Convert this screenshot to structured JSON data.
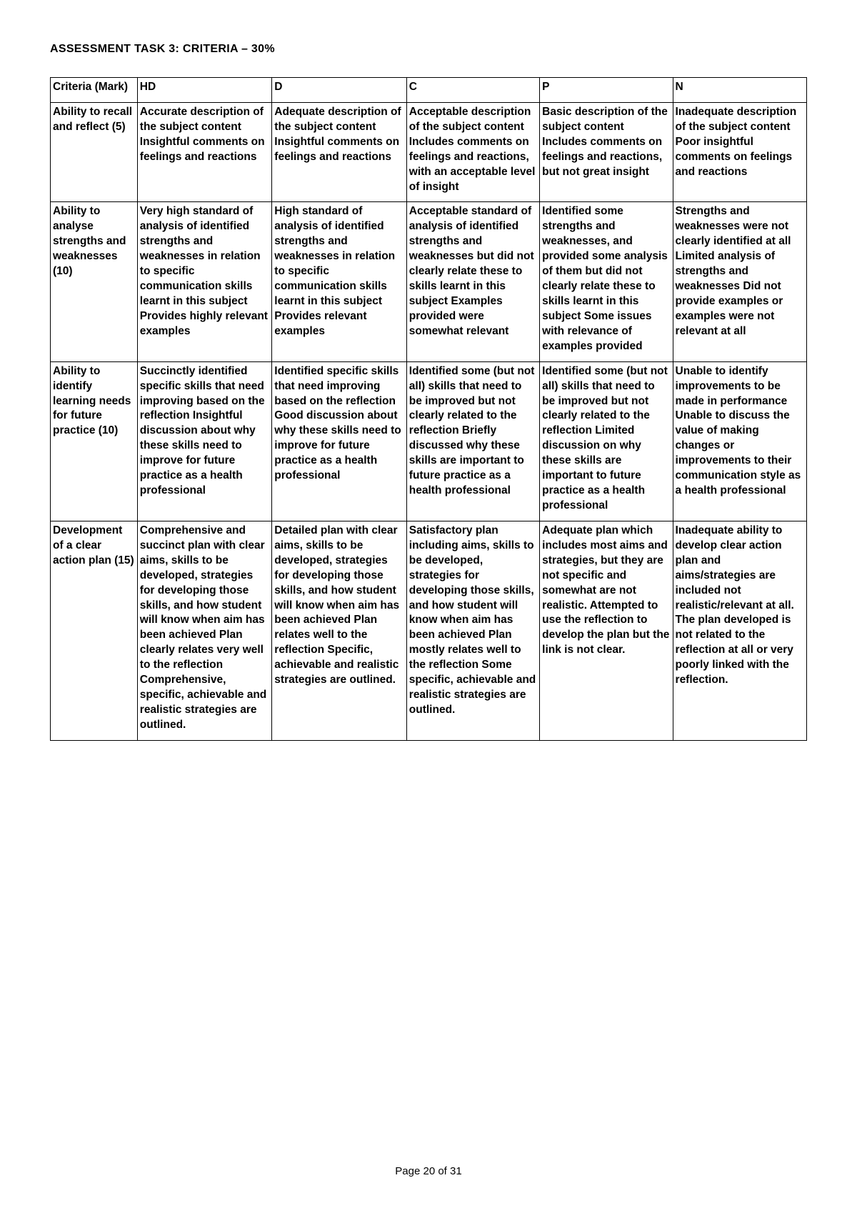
{
  "title": "ASSESSMENT TASK 3: CRITERIA – 30%",
  "footer": "Page 20 of 31",
  "headers": {
    "criteria": "Criteria (Mark)",
    "hd": "HD",
    "d": "D",
    "c": "C",
    "p": "P",
    "n": "N"
  },
  "rows": [
    {
      "criteria": "Ability to recall and reflect (5)",
      "hd": "Accurate description of the subject content Insightful comments on feelings and reactions",
      "d": "Adequate description of the subject content Insightful comments on feelings and reactions",
      "c": "Acceptable description of the subject content Includes comments on feelings and reactions, with an acceptable level of insight",
      "p": "Basic description of the subject content Includes comments on feelings and reactions, but not great insight",
      "n": "Inadequate description of the subject content Poor insightful comments on feelings and reactions"
    },
    {
      "criteria": "Ability to analyse strengths and weaknesses (10)",
      "hd": "Very high standard of analysis of identified strengths and weaknesses in relation to specific communication skills learnt in this subject Provides highly relevant examples",
      "d": "High standard of analysis of identified strengths and weaknesses in relation to specific communication skills learnt in this subject Provides relevant examples",
      "c": "Acceptable standard of analysis of identified strengths and weaknesses but did not clearly relate these to skills learnt in this subject Examples provided were somewhat relevant",
      "p": "Identified some strengths and weaknesses, and provided some analysis of them but did not clearly relate these to skills learnt in this subject Some issues with relevance of examples provided",
      "n": "Strengths and weaknesses were not clearly identified at all Limited analysis of strengths and weaknesses Did not provide examples or examples were not relevant at all"
    },
    {
      "criteria": "Ability to identify learning needs for future practice (10)",
      "hd": "Succinctly identified specific skills that need improving based on the reflection Insightful discussion about why these skills need to improve for future practice as a health professional",
      "d": "Identified specific skills that need improving based on the reflection Good discussion about why these skills need to improve for future practice as a health professional",
      "c": "Identified some (but not all) skills that need to be improved but not clearly related to the reflection Briefly discussed why these skills are important to future practice as a health professional",
      "p": "Identified some (but not all) skills that need to be improved but not clearly related to the reflection Limited discussion on why these skills are important to future practice as a health professional",
      "n": "Unable to identify improvements to be made in performance Unable to discuss the value of making changes or improvements to their communication style as a health professional"
    },
    {
      "criteria": "Development of a clear action plan (15)",
      "hd": "Comprehensive and succinct plan with clear aims, skills to be developed, strategies for developing those skills, and how student will know when aim has been achieved Plan clearly relates very well to the reflection Comprehensive, specific, achievable and realistic strategies are outlined.",
      "d": "Detailed plan with clear aims, skills to be developed, strategies for developing those skills, and how student will know when aim has been achieved Plan relates well to the reflection Specific, achievable and realistic strategies are outlined.",
      "c": "Satisfactory plan including aims, skills to be developed, strategies for developing those skills, and how student will know when aim has been achieved Plan mostly relates well to the reflection Some specific, achievable and realistic strategies are outlined.",
      "p": "Adequate plan which includes most aims and strategies, but they are not specific and somewhat are not realistic. Attempted to use the reflection to develop the plan but the link is not clear.",
      "n": "Inadequate ability to develop clear action plan and aims/strategies are included not realistic/relevant at all. The plan developed is not related to the reflection at all or very poorly linked with the reflection."
    }
  ]
}
